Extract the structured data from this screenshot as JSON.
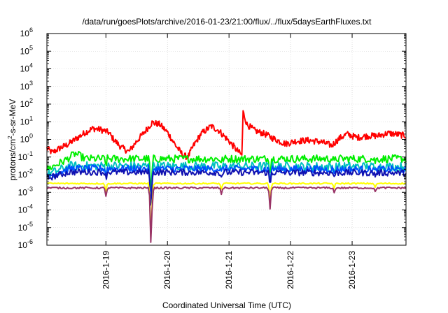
{
  "chart_data": {
    "type": "line",
    "title": "/data/run/goesPlots/archive/2016-01-23/21:00/flux/../flux/5daysEarthFluxes.txt",
    "xlabel": "Coordinated Universal Time (UTC)",
    "ylabel_parts": [
      "protons/cm",
      "2",
      "-s-sr-MeV"
    ],
    "y_scale": "log",
    "ylim": [
      -6,
      6
    ],
    "y_ticks": [
      {
        "base": "10",
        "exp": "-6"
      },
      {
        "base": "10",
        "exp": "-5"
      },
      {
        "base": "10",
        "exp": "-4"
      },
      {
        "base": "10",
        "exp": "-3"
      },
      {
        "base": "10",
        "exp": "-2"
      },
      {
        "base": "10",
        "exp": "-1"
      },
      {
        "base": "10",
        "exp": "0"
      },
      {
        "base": "10",
        "exp": "1"
      },
      {
        "base": "10",
        "exp": "2"
      },
      {
        "base": "10",
        "exp": "3"
      },
      {
        "base": "10",
        "exp": "4"
      },
      {
        "base": "10",
        "exp": "5"
      },
      {
        "base": "10",
        "exp": "6"
      }
    ],
    "x_range": [
      "2016-01-18 01:00",
      "2016-01-23 21:00"
    ],
    "x_ticks": [
      "2016-1-19",
      "2016-1-20",
      "2016-1-21",
      "2016-1-22",
      "2016-1-23"
    ],
    "x_tick_dates": [
      "2016-01-19",
      "2016-01-20",
      "2016-01-21",
      "2016-01-22",
      "2016-01-23"
    ],
    "grid": true,
    "series": [
      {
        "color": "#ff0000",
        "base": 0.0,
        "noise": 0.18,
        "step": 0.25,
        "points": [
          [
            "01-18 01:00",
            -0.5
          ],
          [
            "01-18 03:00",
            -0.75
          ],
          [
            "01-18 06:00",
            -0.5
          ],
          [
            "01-18 09:00",
            -0.3
          ],
          [
            "01-18 13:00",
            0.1
          ],
          [
            "01-18 16:00",
            0.4
          ],
          [
            "01-18 19:00",
            0.62
          ],
          [
            "01-18 22:00",
            0.55
          ],
          [
            "01-19 01:00",
            0.4
          ],
          [
            "01-19 03:00",
            0.0
          ],
          [
            "01-19 06:00",
            -0.45
          ],
          [
            "01-19 09:00",
            -0.7
          ],
          [
            "01-19 12:00",
            -0.1
          ],
          [
            "01-19 15:00",
            0.4
          ],
          [
            "01-19 18:00",
            0.95
          ],
          [
            "01-19 21:00",
            0.85
          ],
          [
            "01-20 00:00",
            0.4
          ],
          [
            "01-20 03:00",
            -0.3
          ],
          [
            "01-20 06:00",
            -0.9
          ],
          [
            "01-20 08:00",
            -1.0
          ],
          [
            "01-20 10:00",
            -0.4
          ],
          [
            "01-20 13:00",
            0.3
          ],
          [
            "01-20 17:00",
            0.75
          ],
          [
            "01-20 20:00",
            0.5
          ],
          [
            "01-21 00:00",
            -0.1
          ],
          [
            "01-21 03:00",
            -0.6
          ],
          [
            "01-21 05:00",
            -0.9
          ],
          [
            "01-21 05:30",
            1.55
          ],
          [
            "01-21 07:00",
            0.85
          ],
          [
            "01-21 10:00",
            0.5
          ],
          [
            "01-21 14:00",
            0.3
          ],
          [
            "01-21 18:00",
            0.0
          ],
          [
            "01-21 22:00",
            -0.25
          ],
          [
            "01-22 02:00",
            -0.1
          ],
          [
            "01-22 07:00",
            -0.05
          ],
          [
            "01-22 12:00",
            -0.15
          ],
          [
            "01-22 16:00",
            -0.35
          ],
          [
            "01-22 19:00",
            0.05
          ],
          [
            "01-22 22:00",
            0.3
          ],
          [
            "01-23 02:00",
            0.1
          ],
          [
            "01-23 06:00",
            0.2
          ],
          [
            "01-23 10:00",
            0.2
          ],
          [
            "01-23 14:00",
            0.35
          ],
          [
            "01-23 17:00",
            0.3
          ],
          [
            "01-23 21:00",
            0.2
          ]
        ]
      },
      {
        "color": "#00ee00",
        "base": -1.15,
        "noise": 0.22,
        "step": 0.4,
        "points": [
          [
            "01-18 01:00",
            -1.7
          ],
          [
            "01-18 08:00",
            -1.2
          ],
          [
            "01-18 12:00",
            -0.8
          ],
          [
            "01-18 16:00",
            -1.1
          ],
          [
            "01-23 21:00",
            -1.1
          ]
        ]
      },
      {
        "color": "#00c0c0",
        "base": -1.55,
        "noise": 0.25,
        "step": 0.4,
        "points": [
          [
            "01-18 01:00",
            -2.0
          ],
          [
            "01-18 10:00",
            -1.5
          ],
          [
            "01-23 21:00",
            -1.55
          ]
        ]
      },
      {
        "color": "#0050ff",
        "base": -1.7,
        "noise": 0.2,
        "step": 0.4,
        "points": [
          [
            "01-18 01:00",
            -2.1
          ],
          [
            "01-18 10:00",
            -1.65
          ],
          [
            "01-23 21:00",
            -1.7
          ]
        ]
      },
      {
        "color": "#1010b0",
        "base": -1.9,
        "noise": 0.18,
        "step": 0.4,
        "points": [
          [
            "01-18 01:00",
            -2.2
          ],
          [
            "01-18 10:00",
            -1.85
          ],
          [
            "01-23 21:00",
            -1.9
          ]
        ]
      },
      {
        "color": "#ffff00",
        "base": -2.5,
        "noise": 0.04,
        "step": 0.5,
        "points": [
          [
            "01-18 01:00",
            -2.5
          ],
          [
            "01-23 21:00",
            -2.5
          ]
        ]
      },
      {
        "color": "#993366",
        "base": -2.75,
        "noise": 0.05,
        "step": 0.5,
        "points": [
          [
            "01-18 01:00",
            -2.75
          ],
          [
            "01-23 21:00",
            -2.75
          ]
        ]
      }
    ],
    "dips": [
      {
        "at": "01-19 00:00",
        "depth": 0.5
      },
      {
        "at": "01-19 17:30",
        "depth": 2.9
      },
      {
        "at": "01-19 18:00",
        "depth": 0.8
      },
      {
        "at": "01-20 21:00",
        "depth": 0.35
      },
      {
        "at": "01-21 16:00",
        "depth": 1.2
      },
      {
        "at": "01-22 17:00",
        "depth": 0.3
      },
      {
        "at": "01-23 09:00",
        "depth": 0.25
      }
    ]
  }
}
